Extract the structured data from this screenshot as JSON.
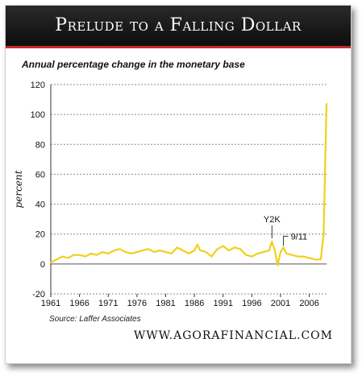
{
  "header": {
    "title": "Prelude to a Falling Dollar"
  },
  "chart_data": {
    "type": "line",
    "title": "Annual percentage change in the monetary base",
    "xlabel": "",
    "ylabel": "percent",
    "xlim": [
      1961,
      2009
    ],
    "ylim": [
      -20,
      120
    ],
    "x_ticks": [
      1961,
      1966,
      1971,
      1976,
      1981,
      1986,
      1991,
      1996,
      2001,
      2006
    ],
    "y_ticks": [
      -20,
      0,
      20,
      40,
      60,
      80,
      100,
      120
    ],
    "grid": "horizontal-dashed",
    "line_color": "#f2cf1f",
    "series": [
      {
        "name": "",
        "x": [
          1961,
          1962,
          1963,
          1964,
          1965,
          1966,
          1967,
          1968,
          1969,
          1970,
          1971,
          1972,
          1973,
          1974,
          1975,
          1976,
          1977,
          1978,
          1979,
          1980,
          1981,
          1982,
          1983,
          1984,
          1985,
          1986,
          1986.5,
          1987,
          1988,
          1989,
          1990,
          1991,
          1992,
          1993,
          1994,
          1995,
          1996,
          1997,
          1998,
          1999,
          1999.5,
          2000,
          2000.5,
          2001,
          2001.5,
          2002,
          2003,
          2004,
          2005,
          2006,
          2007,
          2008,
          2008.5,
          2009
        ],
        "values": [
          1,
          3,
          5,
          4,
          6,
          6,
          5,
          7,
          6,
          8,
          7,
          9,
          10,
          8,
          7,
          8,
          9,
          10,
          8,
          9,
          8,
          7,
          11,
          9,
          7,
          9,
          13,
          9,
          8,
          5,
          10,
          12,
          9,
          11,
          10,
          6,
          5,
          7,
          8,
          9,
          15,
          9,
          -1,
          8,
          11,
          7,
          6,
          5,
          5,
          4,
          3,
          3,
          20,
          107
        ]
      }
    ],
    "annotations": [
      {
        "label": "Y2K",
        "x": 1999.5,
        "y": 15
      },
      {
        "label": "9/11",
        "x": 2001.5,
        "y": 11
      }
    ],
    "source": "Source: Laffer Associates"
  },
  "footer": {
    "website": "WWW.AGORAFINANCIAL.COM"
  }
}
